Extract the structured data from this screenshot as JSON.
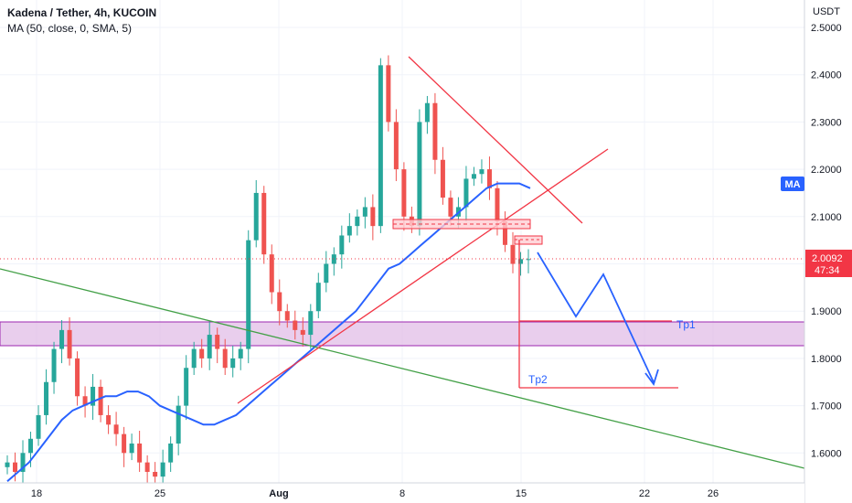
{
  "header": {
    "title": "Kadena / Tether, 4h, KUCOIN",
    "indicator": "MA (50, close, 0, SMA, 5)"
  },
  "chart_data": {
    "type": "candlestick",
    "currency": "USDT",
    "y_ticks": [
      "2.5000",
      "2.4000",
      "2.3000",
      "2.2000",
      "2.1000",
      "2.0000",
      "1.9000",
      "1.8000",
      "1.7000",
      "1.6000"
    ],
    "ylim": [
      1.53,
      2.54
    ],
    "x_ticks": [
      {
        "label": "18",
        "bold": false
      },
      {
        "label": "25",
        "bold": false
      },
      {
        "label": "Aug",
        "bold": true
      },
      {
        "label": "8",
        "bold": false
      },
      {
        "label": "15",
        "bold": false
      },
      {
        "label": "22",
        "bold": false
      },
      {
        "label": "26",
        "bold": false
      }
    ],
    "last_price": "2.0092",
    "countdown": "47:34",
    "ma_badge": "MA",
    "annotations": {
      "tp1": "Tp1",
      "tp2": "Tp2"
    },
    "candles_approx": [
      1.58,
      1.56,
      1.6,
      1.63,
      1.68,
      1.75,
      1.82,
      1.86,
      1.8,
      1.72,
      1.7,
      1.74,
      1.68,
      1.66,
      1.64,
      1.6,
      1.62,
      1.58,
      1.56,
      1.55,
      1.58,
      1.62,
      1.7,
      1.78,
      1.82,
      1.8,
      1.85,
      1.82,
      1.78,
      1.8,
      1.82,
      2.05,
      2.15,
      2.02,
      1.94,
      1.9,
      1.88,
      1.86,
      1.85,
      1.9,
      1.96,
      2.0,
      2.02,
      2.06,
      2.08,
      2.1,
      2.12,
      2.08,
      2.42,
      2.3,
      2.2,
      2.1,
      2.08,
      2.3,
      2.34,
      2.22,
      2.14,
      2.1,
      2.12,
      2.18,
      2.19,
      2.2,
      2.16,
      2.09,
      2.04,
      2.0,
      2.01,
      2.01
    ],
    "ma_approx": [
      1.54,
      1.56,
      1.58,
      1.61,
      1.64,
      1.67,
      1.69,
      1.7,
      1.71,
      1.72,
      1.72,
      1.73,
      1.73,
      1.72,
      1.7,
      1.69,
      1.68,
      1.67,
      1.66,
      1.66,
      1.67,
      1.68,
      1.7,
      1.72,
      1.74,
      1.76,
      1.78,
      1.8,
      1.82,
      1.84,
      1.86,
      1.88,
      1.9,
      1.93,
      1.96,
      1.99,
      2.0,
      2.02,
      2.04,
      2.06,
      2.08,
      2.1,
      2.12,
      2.14,
      2.16,
      2.17,
      2.17,
      2.17,
      2.16
    ],
    "colors": {
      "up": "#26a69a",
      "down": "#ef5350",
      "ma": "#2962ff",
      "trendline": "#f23645",
      "support_line": "#43a047",
      "zone": "#e1bee7",
      "projection": "#2962ff",
      "price_tag": "#f23645"
    },
    "grid": true
  }
}
